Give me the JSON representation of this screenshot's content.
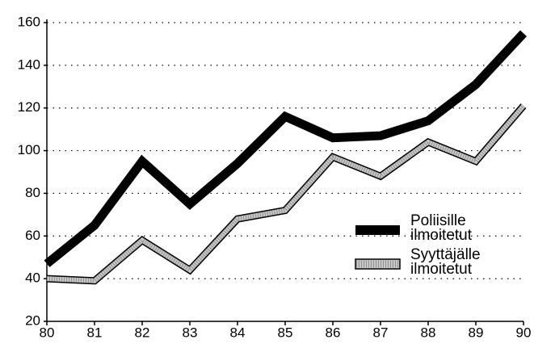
{
  "chart_data": {
    "type": "line",
    "categories": [
      "80",
      "81",
      "82",
      "83",
      "84",
      "85",
      "86",
      "87",
      "88",
      "89",
      "90"
    ],
    "series": [
      {
        "name": "Poliisille ilmoitetut",
        "color": "#000000",
        "values": [
          47,
          65,
          95,
          75,
          94,
          116,
          106,
          107,
          114,
          131,
          155
        ]
      },
      {
        "name": "Syyttäjälle ilmoitetut",
        "color": "#c8c8c8",
        "values": [
          40,
          39,
          58,
          44,
          68,
          72,
          97,
          88,
          104,
          95,
          121
        ]
      }
    ],
    "ylim": [
      20,
      160
    ],
    "yticks": [
      20,
      40,
      60,
      80,
      100,
      120,
      140,
      160
    ],
    "grid": true
  }
}
